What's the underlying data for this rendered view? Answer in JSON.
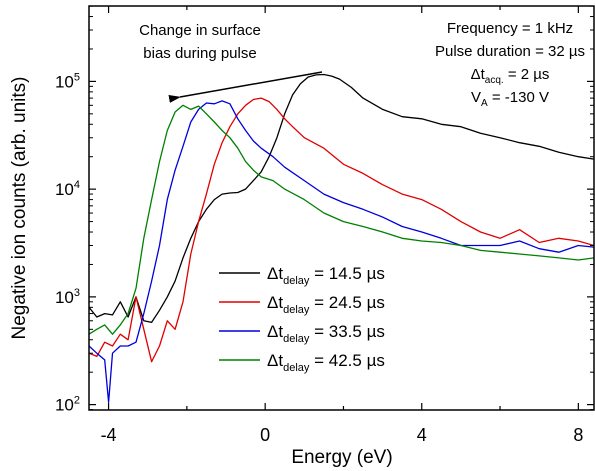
{
  "chart_data": {
    "type": "line",
    "xlabel": "Energy (eV)",
    "ylabel": "Negative ion counts (arb. units)",
    "xlim": [
      -4.5,
      8.4
    ],
    "ylim_log10": [
      1.95,
      5.7
    ],
    "yscale": "log",
    "x_ticks": [
      -4,
      0,
      4,
      8
    ],
    "x_tick_labels": [
      "-4",
      "0",
      "4",
      "8"
    ],
    "y_ticks": [
      {
        "base": "10",
        "exp": "2",
        "log": 2
      },
      {
        "base": "10",
        "exp": "3",
        "log": 3
      },
      {
        "base": "10",
        "exp": "4",
        "log": 4
      },
      {
        "base": "10",
        "exp": "5",
        "log": 5
      }
    ],
    "annotation": {
      "lines": [
        "Change in surface",
        "bias during pulse"
      ]
    },
    "info_box": {
      "frequency": "Frequency = 1 kHz",
      "pulse_duration": "Pulse duration = 32 µs",
      "dt_acq_delta": "Δt",
      "dt_acq_sub": "acq.",
      "dt_acq_value": " = 2 µs",
      "va_main": "V",
      "va_sub": "A",
      "va_value": " = -130 V"
    },
    "legend_placement": "lower-center",
    "series": [
      {
        "name_prefix": "Δt",
        "name_sub": "delay",
        "name_value": " = 14.5 µs",
        "color": "#000000",
        "x": [
          -4.5,
          -4.3,
          -4.1,
          -3.9,
          -3.7,
          -3.5,
          -3.3,
          -3.1,
          -2.9,
          -2.7,
          -2.5,
          -2.3,
          -2.1,
          -1.9,
          -1.7,
          -1.5,
          -1.3,
          -1.1,
          -0.9,
          -0.7,
          -0.5,
          -0.3,
          -0.1,
          0.1,
          0.3,
          0.5,
          0.7,
          0.9,
          1.1,
          1.3,
          1.5,
          1.7,
          1.9,
          2.2,
          2.5,
          3.0,
          3.5,
          4.0,
          4.5,
          5.0,
          5.5,
          6.0,
          6.5,
          7.0,
          7.5,
          8.0,
          8.4
        ],
        "y": [
          800,
          650,
          700,
          680,
          900,
          650,
          1000,
          600,
          580,
          750,
          1000,
          1400,
          2300,
          3500,
          5000,
          6500,
          8000,
          9000,
          9200,
          9300,
          10000,
          12000,
          14500,
          20000,
          30000,
          50000,
          75000,
          95000,
          110000,
          115000,
          116000,
          112000,
          105000,
          88000,
          70000,
          55000,
          47000,
          45000,
          40000,
          38000,
          33000,
          30000,
          27000,
          25000,
          22000,
          20000,
          19000
        ]
      },
      {
        "name_prefix": "Δt",
        "name_sub": "delay",
        "name_value": " = 24.5 µs",
        "color": "#e00000",
        "x": [
          -4.5,
          -4.3,
          -4.1,
          -3.9,
          -3.7,
          -3.5,
          -3.3,
          -3.1,
          -2.9,
          -2.7,
          -2.5,
          -2.3,
          -2.1,
          -1.9,
          -1.7,
          -1.5,
          -1.3,
          -1.1,
          -0.9,
          -0.7,
          -0.5,
          -0.3,
          -0.1,
          0.1,
          0.3,
          0.5,
          0.7,
          1.0,
          1.5,
          2.0,
          2.5,
          3.0,
          3.5,
          4.0,
          4.5,
          5.0,
          5.5,
          6.0,
          6.5,
          7.0,
          7.5,
          8.0,
          8.4
        ],
        "y": [
          300,
          280,
          380,
          350,
          450,
          400,
          1000,
          500,
          250,
          350,
          600,
          500,
          900,
          2500,
          5000,
          9000,
          17000,
          27000,
          38000,
          50000,
          60000,
          68000,
          70000,
          65000,
          55000,
          45000,
          38000,
          30000,
          24000,
          17000,
          14000,
          11000,
          9000,
          8000,
          6500,
          5000,
          4000,
          3500,
          4200,
          3200,
          3500,
          3300,
          3000
        ]
      },
      {
        "name_prefix": "Δt",
        "name_sub": "delay",
        "name_value": " = 33.5 µs",
        "color": "#0000dd",
        "x": [
          -4.5,
          -4.3,
          -4.1,
          -4.0,
          -3.9,
          -3.7,
          -3.5,
          -3.3,
          -3.1,
          -2.9,
          -2.7,
          -2.5,
          -2.3,
          -2.1,
          -1.9,
          -1.7,
          -1.5,
          -1.3,
          -1.1,
          -0.9,
          -0.7,
          -0.5,
          -0.3,
          -0.1,
          0.2,
          0.5,
          1.0,
          1.5,
          2.0,
          2.5,
          3.0,
          3.5,
          4.0,
          4.5,
          5.0,
          5.5,
          6.0,
          6.5,
          7.0,
          7.5,
          8.0,
          8.4
        ],
        "y": [
          350,
          300,
          260,
          105,
          300,
          350,
          350,
          380,
          700,
          1400,
          3000,
          8000,
          15000,
          25000,
          42000,
          55000,
          63000,
          62000,
          66000,
          62000,
          45000,
          35000,
          28000,
          24000,
          20000,
          16000,
          12000,
          9000,
          7500,
          6500,
          5500,
          4500,
          4000,
          3500,
          3000,
          3000,
          3000,
          3300,
          2800,
          2600,
          3000,
          2900
        ]
      },
      {
        "name_prefix": "Δt",
        "name_sub": "delay",
        "name_value": " = 42.5 µs",
        "color": "#008000",
        "x": [
          -4.5,
          -4.3,
          -4.1,
          -3.9,
          -3.7,
          -3.5,
          -3.3,
          -3.1,
          -2.9,
          -2.7,
          -2.5,
          -2.3,
          -2.1,
          -1.9,
          -1.7,
          -1.5,
          -1.3,
          -1.1,
          -0.9,
          -0.7,
          -0.5,
          -0.3,
          -0.1,
          0.2,
          0.5,
          1.0,
          1.5,
          2.0,
          2.5,
          3.0,
          3.5,
          4.0,
          4.5,
          5.0,
          5.5,
          6.0,
          6.5,
          7.0,
          7.5,
          8.0,
          8.4
        ],
        "y": [
          450,
          500,
          550,
          450,
          550,
          700,
          1200,
          3500,
          8000,
          18000,
          35000,
          52000,
          60000,
          55000,
          59000,
          50000,
          42000,
          35000,
          30000,
          24000,
          18000,
          15000,
          13000,
          12000,
          10000,
          8000,
          6000,
          5000,
          4500,
          4000,
          3500,
          3300,
          3200,
          3000,
          2700,
          2600,
          2500,
          2400,
          2300,
          2200,
          2300
        ]
      }
    ]
  }
}
